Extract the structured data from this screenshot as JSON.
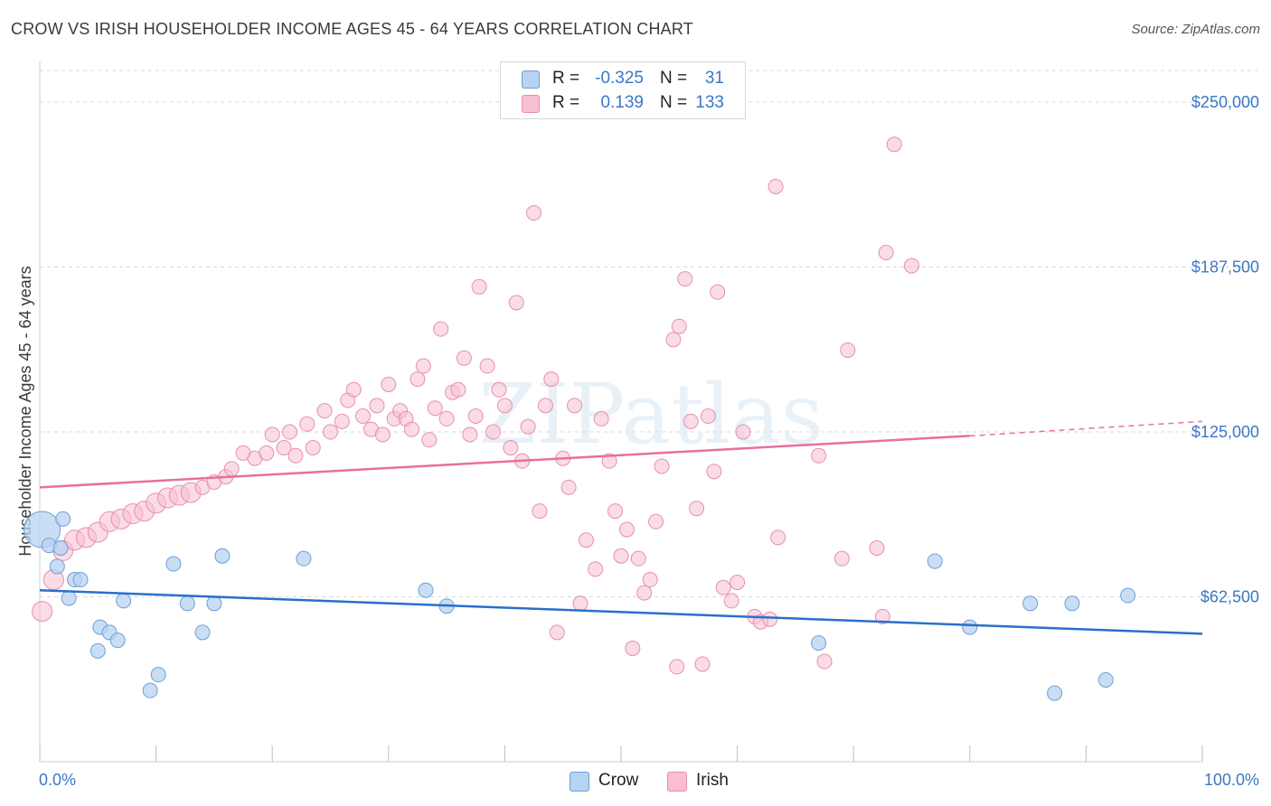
{
  "title": "CROW VS IRISH HOUSEHOLDER INCOME AGES 45 - 64 YEARS CORRELATION CHART",
  "source": "Source: ZipAtlas.com",
  "watermark": "ZIPatlas",
  "legend": {
    "rows": [
      {
        "r_label": "R =",
        "r_value": "-0.325",
        "n_label": "N =",
        "n_value": "31"
      },
      {
        "r_label": "R =",
        "r_value": "0.139",
        "n_label": "N =",
        "n_value": "133"
      }
    ]
  },
  "bottom_legend": {
    "crow": "Crow",
    "irish": "Irish"
  },
  "colors": {
    "crow_fill": "#b7d3f2",
    "crow_stroke": "#6d9fd8",
    "crow_line": "#2a6fcc",
    "irish_fill": "#f7bfd1",
    "irish_stroke": "#e68fae",
    "irish_line": "#e8709a",
    "axis_label": "#3b78c6",
    "grid": "#d9d9d9"
  },
  "chart_data": {
    "type": "scatter",
    "title": "CROW VS IRISH HOUSEHOLDER INCOME AGES 45 - 64 YEARS CORRELATION CHART",
    "xlabel": "",
    "ylabel": "Householder Income Ages 45 - 64 years",
    "xlim": [
      0,
      100
    ],
    "ylim": [
      0,
      262000
    ],
    "x_tick_labels": [
      "0.0%",
      "100.0%"
    ],
    "y_ticks": [
      62500,
      125000,
      187500,
      250000
    ],
    "y_tick_labels": [
      "$62,500",
      "$125,000",
      "$187,500",
      "$250,000"
    ],
    "series": [
      {
        "name": "Crow",
        "points": [
          [
            0.2,
            88000,
            3
          ],
          [
            0.8,
            82000,
            1
          ],
          [
            1.5,
            74000,
            1
          ],
          [
            2.0,
            92000,
            1
          ],
          [
            1.8,
            81000,
            1
          ],
          [
            2.5,
            62000,
            1
          ],
          [
            3.0,
            69000,
            1
          ],
          [
            3.5,
            69000,
            1
          ],
          [
            5.0,
            42000,
            1
          ],
          [
            5.2,
            51000,
            1
          ],
          [
            6.0,
            49000,
            1
          ],
          [
            6.7,
            46000,
            1
          ],
          [
            7.2,
            61000,
            1
          ],
          [
            9.5,
            27000,
            1
          ],
          [
            10.2,
            33000,
            1
          ],
          [
            11.5,
            75000,
            1
          ],
          [
            12.7,
            60000,
            1
          ],
          [
            14.0,
            49000,
            1
          ],
          [
            15.0,
            60000,
            1
          ],
          [
            15.7,
            78000,
            1
          ],
          [
            22.7,
            77000,
            1
          ],
          [
            33.2,
            65000,
            1
          ],
          [
            35.0,
            59000,
            1
          ],
          [
            67.0,
            45000,
            1
          ],
          [
            77.0,
            76000,
            1
          ],
          [
            80.0,
            51000,
            1
          ],
          [
            85.2,
            60000,
            1
          ],
          [
            87.3,
            26000,
            1
          ],
          [
            88.8,
            60000,
            1
          ],
          [
            91.7,
            31000,
            1
          ],
          [
            93.6,
            63000,
            1
          ]
        ]
      },
      {
        "name": "Irish",
        "points": [
          [
            0.2,
            57000,
            2
          ],
          [
            1.2,
            69000,
            2
          ],
          [
            2.0,
            80000,
            2
          ],
          [
            3.0,
            84000,
            2
          ],
          [
            4.0,
            85000,
            2
          ],
          [
            5.0,
            87000,
            2
          ],
          [
            6.0,
            91000,
            2
          ],
          [
            7.0,
            92000,
            2
          ],
          [
            8.0,
            94000,
            2
          ],
          [
            9.0,
            95000,
            2
          ],
          [
            10.0,
            98000,
            2
          ],
          [
            11.0,
            100000,
            2
          ],
          [
            12.0,
            101000,
            2
          ],
          [
            13.0,
            102000,
            2
          ],
          [
            14.0,
            104000,
            1
          ],
          [
            15.0,
            106000,
            1
          ],
          [
            16.0,
            108000,
            1
          ],
          [
            16.5,
            111000,
            1
          ],
          [
            17.5,
            117000,
            1
          ],
          [
            18.5,
            115000,
            1
          ],
          [
            19.5,
            117000,
            1
          ],
          [
            20.0,
            124000,
            1
          ],
          [
            21.0,
            119000,
            1
          ],
          [
            21.5,
            125000,
            1
          ],
          [
            22.0,
            116000,
            1
          ],
          [
            23.0,
            128000,
            1
          ],
          [
            23.5,
            119000,
            1
          ],
          [
            24.5,
            133000,
            1
          ],
          [
            25.0,
            125000,
            1
          ],
          [
            26.0,
            129000,
            1
          ],
          [
            26.5,
            137000,
            1
          ],
          [
            27.0,
            141000,
            1
          ],
          [
            27.8,
            131000,
            1
          ],
          [
            28.5,
            126000,
            1
          ],
          [
            29.0,
            135000,
            1
          ],
          [
            29.5,
            124000,
            1
          ],
          [
            30.0,
            143000,
            1
          ],
          [
            30.5,
            130000,
            1
          ],
          [
            31.0,
            133000,
            1
          ],
          [
            31.5,
            130000,
            1
          ],
          [
            32.0,
            126000,
            1
          ],
          [
            32.5,
            145000,
            1
          ],
          [
            33.0,
            150000,
            1
          ],
          [
            33.5,
            122000,
            1
          ],
          [
            34.0,
            134000,
            1
          ],
          [
            34.5,
            164000,
            1
          ],
          [
            35.0,
            130000,
            1
          ],
          [
            35.5,
            140000,
            1
          ],
          [
            36.0,
            141000,
            1
          ],
          [
            36.5,
            153000,
            1
          ],
          [
            37.0,
            124000,
            1
          ],
          [
            37.5,
            131000,
            1
          ],
          [
            37.8,
            180000,
            1
          ],
          [
            38.5,
            150000,
            1
          ],
          [
            39.0,
            125000,
            1
          ],
          [
            39.5,
            141000,
            1
          ],
          [
            40.0,
            135000,
            1
          ],
          [
            40.5,
            119000,
            1
          ],
          [
            41.0,
            174000,
            1
          ],
          [
            41.5,
            114000,
            1
          ],
          [
            42.0,
            127000,
            1
          ],
          [
            42.5,
            208000,
            1
          ],
          [
            43.0,
            95000,
            1
          ],
          [
            43.5,
            135000,
            1
          ],
          [
            44.0,
            145000,
            1
          ],
          [
            44.5,
            49000,
            1
          ],
          [
            45.0,
            115000,
            1
          ],
          [
            45.5,
            104000,
            1
          ],
          [
            46.0,
            135000,
            1
          ],
          [
            46.5,
            60000,
            1
          ],
          [
            47.0,
            84000,
            1
          ],
          [
            47.8,
            73000,
            1
          ],
          [
            48.3,
            130000,
            1
          ],
          [
            49.0,
            114000,
            1
          ],
          [
            49.5,
            95000,
            1
          ],
          [
            50.0,
            78000,
            1
          ],
          [
            50.5,
            88000,
            1
          ],
          [
            51.0,
            43000,
            1
          ],
          [
            51.5,
            77000,
            1
          ],
          [
            52.0,
            64000,
            1
          ],
          [
            52.5,
            69000,
            1
          ],
          [
            53.0,
            91000,
            1
          ],
          [
            53.5,
            112000,
            1
          ],
          [
            54.5,
            160000,
            1
          ],
          [
            55.0,
            165000,
            1
          ],
          [
            55.5,
            183000,
            1
          ],
          [
            54.8,
            36000,
            1
          ],
          [
            56.0,
            129000,
            1
          ],
          [
            56.5,
            96000,
            1
          ],
          [
            57.0,
            37000,
            1
          ],
          [
            57.5,
            131000,
            1
          ],
          [
            58.0,
            110000,
            1
          ],
          [
            58.3,
            178000,
            1
          ],
          [
            58.8,
            66000,
            1
          ],
          [
            59.5,
            61000,
            1
          ],
          [
            60.0,
            68000,
            1
          ],
          [
            60.5,
            125000,
            1
          ],
          [
            61.5,
            55000,
            1
          ],
          [
            62.0,
            53000,
            1
          ],
          [
            62.8,
            54000,
            1
          ],
          [
            63.5,
            85000,
            1
          ],
          [
            63.3,
            218000,
            1
          ],
          [
            67.0,
            116000,
            1
          ],
          [
            67.5,
            38000,
            1
          ],
          [
            69.0,
            77000,
            1
          ],
          [
            69.5,
            156000,
            1
          ],
          [
            72.0,
            81000,
            1
          ],
          [
            72.5,
            55000,
            1
          ],
          [
            72.8,
            193000,
            1
          ],
          [
            73.5,
            234000,
            1
          ],
          [
            75.0,
            188000,
            1
          ]
        ]
      }
    ],
    "trendlines": [
      {
        "series": "Crow",
        "x": [
          0,
          100
        ],
        "y": [
          65000,
          48500
        ]
      },
      {
        "series": "Irish",
        "x": [
          0,
          80
        ],
        "y": [
          104000,
          123500
        ],
        "dashed_extension_to": [
          100,
          129000
        ]
      }
    ]
  }
}
